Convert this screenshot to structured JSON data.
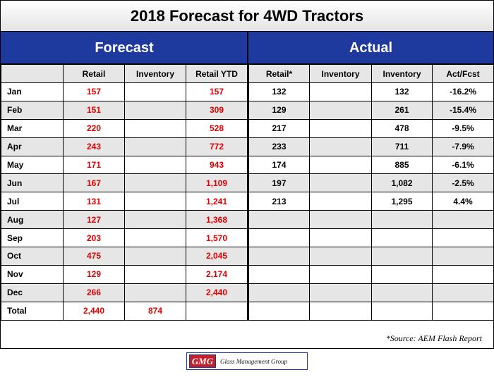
{
  "title": "2018 Forecast for 4WD Tractors",
  "bands": {
    "forecast": "Forecast",
    "actual": "Actual"
  },
  "columns": [
    "",
    "Retail",
    "Inventory",
    "Retail YTD",
    "Retail*",
    "Inventory",
    "Inventory",
    "Act/Fcst"
  ],
  "rows": [
    [
      "Jan",
      "157",
      "",
      "157",
      "132",
      "",
      "132",
      "-16.2%"
    ],
    [
      "Feb",
      "151",
      "",
      "309",
      "129",
      "",
      "261",
      "-15.4%"
    ],
    [
      "Mar",
      "220",
      "",
      "528",
      "217",
      "",
      "478",
      "-9.5%"
    ],
    [
      "Apr",
      "243",
      "",
      "772",
      "233",
      "",
      "711",
      "-7.9%"
    ],
    [
      "May",
      "171",
      "",
      "943",
      "174",
      "",
      "885",
      "-6.1%"
    ],
    [
      "Jun",
      "167",
      "",
      "1,109",
      "197",
      "",
      "1,082",
      "-2.5%"
    ],
    [
      "Jul",
      "131",
      "",
      "1,241",
      "213",
      "",
      "1,295",
      "4.4%"
    ],
    [
      "Aug",
      "127",
      "",
      "1,368",
      "",
      "",
      "",
      ""
    ],
    [
      "Sep",
      "203",
      "",
      "1,570",
      "",
      "",
      "",
      ""
    ],
    [
      "Oct",
      "475",
      "",
      "2,045",
      "",
      "",
      "",
      ""
    ],
    [
      "Nov",
      "129",
      "",
      "2,174",
      "",
      "",
      "",
      ""
    ],
    [
      "Dec",
      "266",
      "",
      "2,440",
      "",
      "",
      "",
      ""
    ],
    [
      "Total",
      "2,440",
      "874",
      "",
      "",
      "",
      "",
      ""
    ]
  ],
  "source": "*Source: AEM Flash Report",
  "logo": {
    "mark": "GMG",
    "text": "Glass Management Group"
  },
  "colors": {
    "band": "#1f3a9e",
    "forecast_value": "#e00000",
    "shade": "#e6e6e6"
  }
}
